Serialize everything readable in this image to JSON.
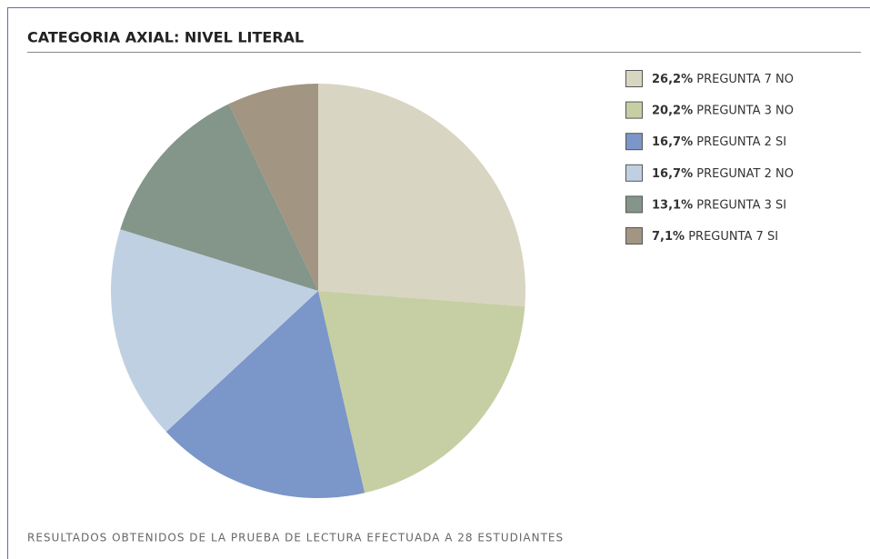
{
  "chart_data": {
    "type": "pie",
    "title": "CATEGORIA AXIAL: NIVEL LITERAL",
    "categories": [
      "PREGUNTA 7 NO",
      "PREGUNTA 3 NO",
      "PREGUNTA 2 SI",
      "PREGUNAT 2 NO",
      "PREGUNTA 3 SI",
      "PREGUNTA 7 SI"
    ],
    "values": [
      26.2,
      20.2,
      16.7,
      16.7,
      13.1,
      7.1
    ],
    "value_labels": [
      "26,2%",
      "20,2%",
      "16,7%",
      "16,7%",
      "13,1%",
      "7,1%"
    ],
    "colors": [
      "#d9d5c3",
      "#c6cfa3",
      "#7b96c8",
      "#c0d0e3",
      "#84958a",
      "#a29581"
    ],
    "legend": "right",
    "caption": "RESULTADOS OBTENIDOS DE LA PRUEBA DE LECTURA EFECTUADA A 28 ESTUDIANTES"
  }
}
